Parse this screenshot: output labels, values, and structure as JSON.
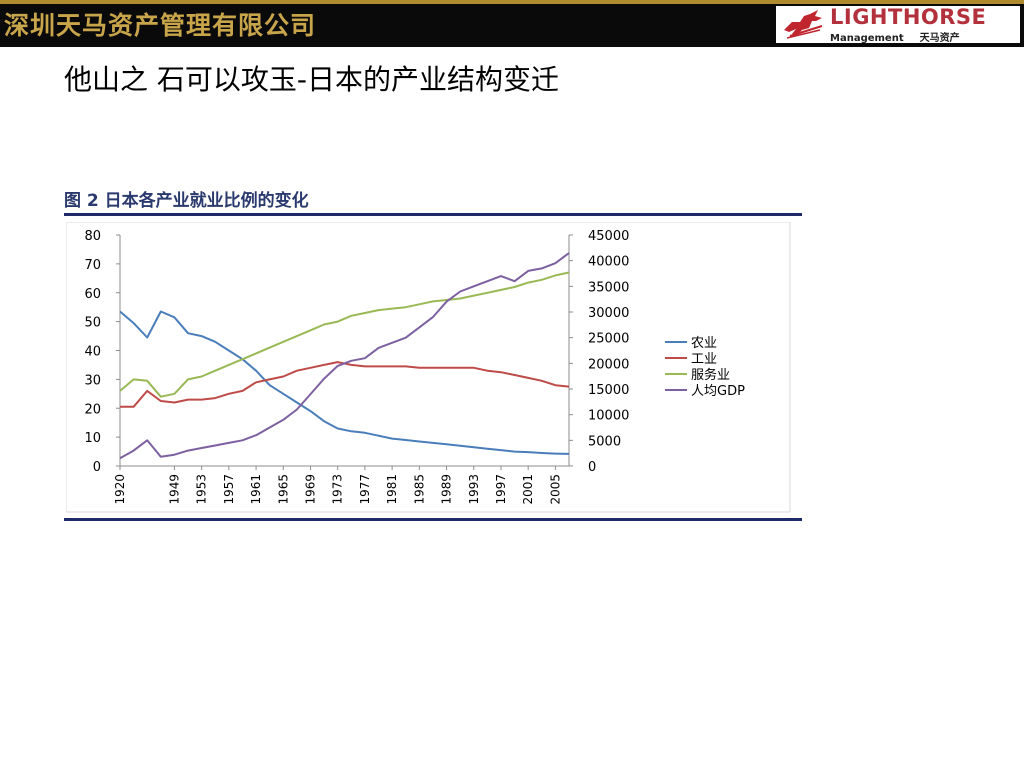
{
  "header": {
    "company": "深圳天马资产管理有限公司",
    "logo_name": "LIGHTHORSE",
    "logo_sub_en": "Management",
    "logo_sub_cn": "天马资产",
    "logo_icon": "horse-icon"
  },
  "slide": {
    "title": "他山之 石可以攻玉-日本的产业结构变迁"
  },
  "figure": {
    "title": "图 2 日本各产业就业比例的变化"
  },
  "colors": {
    "agriculture": "#4a7ebb",
    "industry": "#be4b48",
    "service": "#98b954",
    "gdp": "#7d60a0",
    "rule": "#1f2a6b"
  },
  "chart_data": {
    "type": "line",
    "x": [
      1920,
      1930,
      1940,
      1947,
      1949,
      1951,
      1953,
      1955,
      1957,
      1959,
      1961,
      1963,
      1965,
      1967,
      1969,
      1971,
      1973,
      1975,
      1977,
      1979,
      1981,
      1983,
      1985,
      1987,
      1989,
      1991,
      1993,
      1995,
      1997,
      1999,
      2001,
      2003,
      2005,
      2007
    ],
    "x_tick_labels": [
      "1920",
      "1949",
      "1953",
      "1957",
      "1961",
      "1965",
      "1969",
      "1973",
      "1977",
      "1981",
      "1985",
      "1989",
      "1993",
      "1997",
      "2001",
      "2005"
    ],
    "y_left": {
      "ylim": [
        0,
        80
      ],
      "ticks": [
        "0",
        "10",
        "20",
        "30",
        "40",
        "50",
        "60",
        "70",
        "80"
      ]
    },
    "y_right": {
      "ylim": [
        0,
        45000
      ],
      "ticks": [
        "0",
        "5000",
        "10000",
        "15000",
        "20000",
        "25000",
        "30000",
        "35000",
        "40000",
        "45000"
      ]
    },
    "legend_position": "right",
    "series": [
      {
        "name": "农业",
        "axis": "left",
        "color": "#4a7ebb",
        "values": [
          53.5,
          49.5,
          44.5,
          53.5,
          51.5,
          46,
          45,
          43,
          40,
          37,
          33,
          28,
          25,
          22,
          19,
          15.5,
          13,
          12,
          11.5,
          10.5,
          9.5,
          9,
          8.5,
          8,
          7.5,
          7,
          6.5,
          6,
          5.5,
          5,
          4.8,
          4.5,
          4.3,
          4.2
        ]
      },
      {
        "name": "工业",
        "axis": "left",
        "color": "#be4b48",
        "values": [
          20.5,
          20.5,
          26,
          22.5,
          22,
          23,
          23,
          23.5,
          25,
          26,
          29,
          30,
          31,
          33,
          34,
          35,
          36,
          35,
          34.5,
          34.5,
          34.5,
          34.5,
          34,
          34,
          34,
          34,
          34,
          33,
          32.5,
          31.5,
          30.5,
          29.5,
          28,
          27.5
        ]
      },
      {
        "name": "服务业",
        "axis": "left",
        "color": "#98b954",
        "values": [
          26,
          30,
          29.5,
          24,
          25,
          30,
          31,
          33,
          35,
          37,
          39,
          41,
          43,
          45,
          47,
          49,
          50,
          52,
          53,
          54,
          54.5,
          55,
          56,
          57,
          57.5,
          58,
          59,
          60,
          61,
          62,
          63.5,
          64.5,
          66,
          67
        ]
      },
      {
        "name": "人均GDP",
        "axis": "right",
        "color": "#7d60a0",
        "values": [
          1500,
          3000,
          5000,
          1800,
          2200,
          3000,
          3500,
          4000,
          4500,
          5000,
          6000,
          7500,
          9000,
          11000,
          14000,
          17000,
          19500,
          20500,
          21000,
          23000,
          24000,
          25000,
          27000,
          29000,
          32000,
          34000,
          35000,
          36000,
          37000,
          36000,
          38000,
          38500,
          39500,
          41500
        ]
      }
    ]
  }
}
